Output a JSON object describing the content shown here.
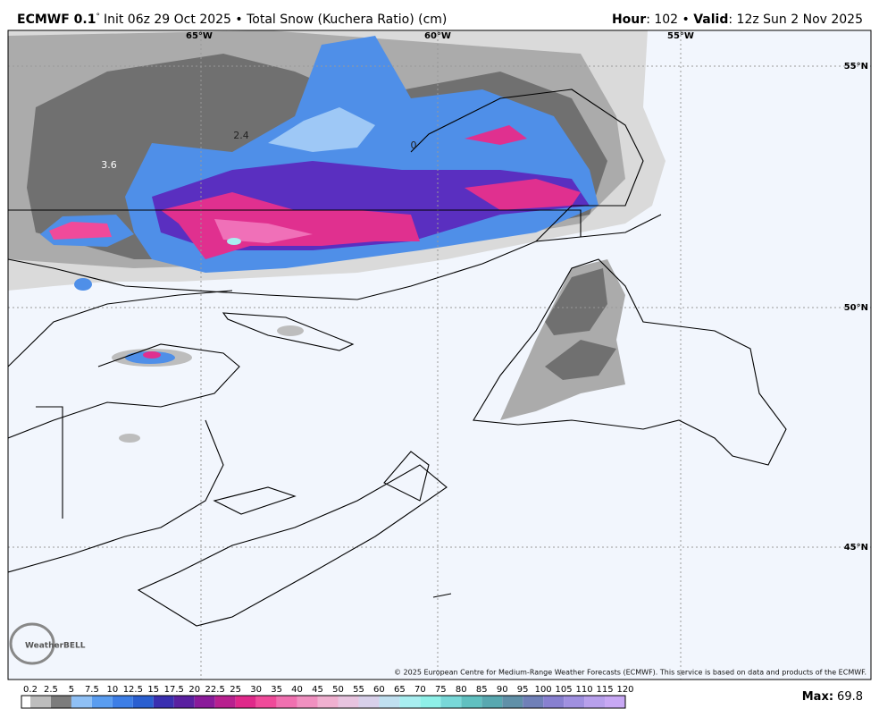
{
  "header": {
    "model": "ECMWF 0.1",
    "degree": "°",
    "description": "Init 06z 29 Oct 2025 • Total Snow (Kuchera Ratio) (cm)",
    "right": [
      "Hour",
      ": 102 • ",
      "Valid",
      ": 12z Sun 2 Nov 2025"
    ]
  },
  "map": {
    "longitude_labels": [
      "65°W",
      "60°W",
      "55°W"
    ],
    "latitude_labels": [
      "55°N",
      "50°N",
      "45°N"
    ],
    "contour_labels": [
      2.4,
      3.6,
      0
    ],
    "logo": "WeatherBELL",
    "copyright": "© 2025 European Centre for Medium-Range Weather Forecasts (ECMWF). This service is based on data and products of the ECMWF."
  },
  "colorbar": {
    "ticks": [
      0.2,
      2.5,
      5,
      7.5,
      10,
      12.5,
      15,
      17.5,
      20,
      22.5,
      25,
      30,
      35,
      40,
      45,
      50,
      55,
      60,
      65,
      70,
      75,
      80,
      85,
      90,
      95,
      100,
      105,
      110,
      115,
      120
    ],
    "colors": [
      "#ffffff",
      "#bdbdbd",
      "#7c7c7c",
      "#8fc0f5",
      "#5a9df0",
      "#3d7ee6",
      "#2a5fd0",
      "#3a2fb0",
      "#5a20a0",
      "#8a1a9a",
      "#b8208f",
      "#e0288a",
      "#f04a9a",
      "#f070b0",
      "#f090c0",
      "#f0b0d0",
      "#e8c4e0",
      "#d8d0ea",
      "#c0e0f0",
      "#a8eef0",
      "#8ef0e8",
      "#78d8d8",
      "#60c0c0",
      "#58a8b0",
      "#6090a8",
      "#7080b8",
      "#8880d0",
      "#a090e0",
      "#b8a0ec",
      "#c8a8f4"
    ]
  },
  "max": {
    "label": "Max:",
    "value": 69.8
  }
}
